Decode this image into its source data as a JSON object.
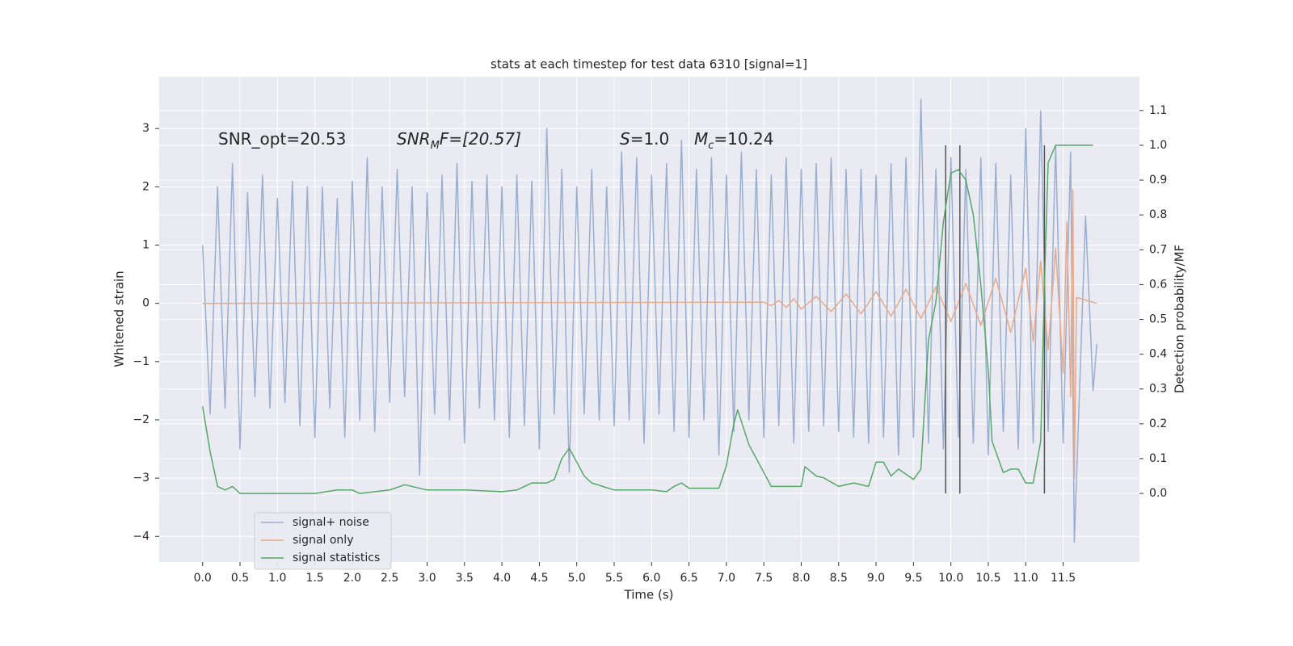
{
  "chart_data": {
    "type": "line",
    "title": "stats at each timestep for test data 6310 [signal=1]",
    "xlabel": "Time (s)",
    "ylabel": "Whitened strain",
    "y2label": "Detection probability/MF",
    "xlim": [
      -0.58,
      12.52
    ],
    "ylim": [
      -4.44,
      3.89
    ],
    "y2lim": [
      -0.197,
      1.197
    ],
    "xticks": [
      {
        "value": 0,
        "label": "0.0"
      },
      0.5,
      {
        "value": 1,
        "label": "1.0"
      },
      1.5,
      {
        "value": 2,
        "label": "2.0"
      },
      2.5,
      {
        "value": 3,
        "label": "3.0"
      },
      3.5,
      {
        "value": 4,
        "label": "4.0"
      },
      4.5,
      {
        "value": 5,
        "label": "5.0"
      },
      5.5,
      {
        "value": 6,
        "label": "6.0"
      },
      6.5,
      {
        "value": 7,
        "label": "7.0"
      },
      7.5,
      {
        "value": 8,
        "label": "8.0"
      },
      8.5,
      {
        "value": 9,
        "label": "9.0"
      },
      9.5,
      {
        "value": 10,
        "label": "10.0"
      },
      10.5,
      {
        "value": 11,
        "label": "11.0"
      },
      11.5
    ],
    "yticks": [
      {
        "value": -4,
        "label": "−4"
      },
      {
        "value": -3,
        "label": "−3"
      },
      {
        "value": -2,
        "label": "−2"
      },
      {
        "value": -1,
        "label": "−1"
      },
      0,
      1,
      2,
      3
    ],
    "y2ticks": [
      {
        "value": 0,
        "label": "0.0"
      },
      0.1,
      0.2,
      0.3,
      0.4,
      0.5,
      0.6,
      0.7,
      0.8,
      0.9,
      {
        "value": 1,
        "label": "1.0"
      },
      1.1
    ],
    "grid": true,
    "legend": "lower left",
    "series": [
      {
        "name": "signal+ noise",
        "color": "#9aaed0",
        "x": [
          0.0,
          0.1,
          0.2,
          0.3,
          0.4,
          0.5,
          0.6,
          0.7,
          0.8,
          0.9,
          1.0,
          1.1,
          1.2,
          1.3,
          1.4,
          1.5,
          1.6,
          1.7,
          1.8,
          1.9,
          2.0,
          2.1,
          2.2,
          2.3,
          2.4,
          2.5,
          2.6,
          2.7,
          2.8,
          2.9,
          3.0,
          3.1,
          3.2,
          3.3,
          3.4,
          3.5,
          3.6,
          3.7,
          3.8,
          3.9,
          4.0,
          4.1,
          4.2,
          4.3,
          4.4,
          4.5,
          4.6,
          4.7,
          4.8,
          4.9,
          5.0,
          5.1,
          5.2,
          5.3,
          5.4,
          5.5,
          5.6,
          5.7,
          5.8,
          5.9,
          6.0,
          6.1,
          6.2,
          6.3,
          6.4,
          6.5,
          6.6,
          6.7,
          6.8,
          6.9,
          7.0,
          7.1,
          7.2,
          7.3,
          7.4,
          7.5,
          7.6,
          7.7,
          7.8,
          7.9,
          8.0,
          8.1,
          8.2,
          8.3,
          8.4,
          8.5,
          8.6,
          8.7,
          8.8,
          8.9,
          9.0,
          9.1,
          9.2,
          9.3,
          9.4,
          9.5,
          9.6,
          9.7,
          9.8,
          9.9,
          10.0,
          10.1,
          10.2,
          10.3,
          10.4,
          10.5,
          10.6,
          10.7,
          10.8,
          10.9,
          11.0,
          11.1,
          11.2,
          11.3,
          11.4,
          11.5,
          11.6,
          11.65,
          11.8,
          11.9,
          11.95
        ],
        "values": [
          1.0,
          -1.9,
          2.0,
          -1.8,
          2.4,
          -2.5,
          1.9,
          -1.6,
          2.2,
          -1.8,
          1.8,
          -1.7,
          2.1,
          -2.1,
          2.0,
          -2.3,
          2.0,
          -1.8,
          1.8,
          -2.3,
          2.1,
          -2.0,
          2.5,
          -2.2,
          2.0,
          -1.7,
          2.3,
          -1.6,
          2.0,
          -2.95,
          1.9,
          -1.9,
          2.2,
          -2.0,
          2.4,
          -2.4,
          2.1,
          -1.8,
          2.2,
          -2.0,
          2.0,
          -2.3,
          2.2,
          -2.1,
          2.1,
          -2.5,
          3.0,
          -1.9,
          2.3,
          -2.9,
          2.0,
          -1.9,
          2.3,
          -2.0,
          2.0,
          -2.1,
          2.6,
          -2.0,
          2.5,
          -2.4,
          2.2,
          -1.9,
          2.4,
          -2.2,
          2.8,
          -2.3,
          2.3,
          -2.0,
          2.5,
          -2.6,
          2.2,
          -2.2,
          2.6,
          -2.0,
          2.3,
          -2.3,
          2.2,
          -2.1,
          2.5,
          -2.4,
          2.3,
          -2.2,
          2.4,
          -2.1,
          2.5,
          -2.2,
          2.3,
          -2.3,
          2.3,
          -2.4,
          2.2,
          -2.3,
          2.4,
          -2.6,
          2.5,
          -2.3,
          3.5,
          -2.4,
          2.3,
          -2.5,
          2.5,
          -2.3,
          2.3,
          -2.4,
          2.5,
          -2.6,
          2.4,
          -2.2,
          2.2,
          -2.5,
          3.0,
          -2.4,
          3.3,
          -2.2,
          2.7,
          -2.4,
          2.6,
          -4.1,
          1.5,
          -1.5,
          -0.7
        ]
      },
      {
        "name": "signal only",
        "color": "#e8a98a",
        "x": [
          0.0,
          7.5,
          7.6,
          7.7,
          7.8,
          7.9,
          8.0,
          8.2,
          8.4,
          8.6,
          8.8,
          9.0,
          9.2,
          9.4,
          9.6,
          9.8,
          10.0,
          10.2,
          10.4,
          10.6,
          10.8,
          11.0,
          11.1,
          11.2,
          11.3,
          11.4,
          11.5,
          11.55,
          11.6,
          11.63,
          11.65,
          11.68,
          11.95
        ],
        "values": [
          0,
          0.02,
          -0.04,
          0.05,
          -0.07,
          0.08,
          -0.1,
          0.12,
          -0.14,
          0.16,
          -0.18,
          0.2,
          -0.22,
          0.24,
          -0.26,
          0.28,
          -0.31,
          0.34,
          -0.38,
          0.43,
          -0.5,
          0.6,
          -0.65,
          0.72,
          -0.8,
          0.95,
          -1.2,
          1.4,
          -1.6,
          1.95,
          -3.0,
          0.1,
          0
        ]
      },
      {
        "name": "signal statistics",
        "color": "#55a868",
        "axis": "y2",
        "x": [
          0.0,
          0.1,
          0.2,
          0.3,
          0.4,
          0.5,
          1.0,
          1.5,
          1.8,
          2.0,
          2.1,
          2.5,
          2.7,
          3.0,
          3.5,
          4.0,
          4.2,
          4.4,
          4.6,
          4.7,
          4.8,
          4.9,
          5.0,
          5.1,
          5.2,
          5.5,
          6.0,
          6.2,
          6.3,
          6.4,
          6.5,
          6.9,
          7.0,
          7.1,
          7.15,
          7.3,
          7.5,
          7.6,
          8.0,
          8.05,
          8.2,
          8.3,
          8.5,
          8.7,
          8.9,
          9.0,
          9.1,
          9.2,
          9.3,
          9.5,
          9.6,
          9.7,
          9.8,
          9.9,
          10.0,
          10.1,
          10.2,
          10.3,
          10.4,
          10.5,
          10.55,
          10.7,
          10.8,
          10.9,
          11.0,
          11.1,
          11.2,
          11.25,
          11.3,
          11.4,
          11.9
        ],
        "values": [
          0.25,
          0.12,
          0.02,
          0.01,
          0.02,
          0.0,
          0.0,
          0.0,
          0.01,
          0.01,
          0.0,
          0.01,
          0.025,
          0.01,
          0.01,
          0.005,
          0.01,
          0.03,
          0.03,
          0.04,
          0.1,
          0.13,
          0.09,
          0.05,
          0.03,
          0.01,
          0.01,
          0.005,
          0.02,
          0.03,
          0.015,
          0.015,
          0.08,
          0.2,
          0.24,
          0.14,
          0.06,
          0.02,
          0.02,
          0.077,
          0.05,
          0.045,
          0.02,
          0.03,
          0.02,
          0.09,
          0.09,
          0.05,
          0.07,
          0.04,
          0.07,
          0.44,
          0.55,
          0.78,
          0.92,
          0.93,
          0.9,
          0.8,
          0.6,
          0.35,
          0.15,
          0.06,
          0.07,
          0.07,
          0.03,
          0.03,
          0.15,
          0.6,
          0.95,
          1.0,
          1.0
        ]
      }
    ],
    "vlines": {
      "color": "#555555",
      "x": [
        9.93,
        10.12,
        11.25
      ],
      "span": [
        0,
        1
      ]
    },
    "annotations": [
      {
        "text": "SNR_opt=20.53"
      },
      {
        "text": "SNR",
        "sub": "M",
        "after": "F=[20.57]"
      },
      {
        "text": "S",
        "after": "=1.0"
      },
      {
        "text": "M",
        "sub": "c",
        "after": "=10.24"
      }
    ]
  }
}
